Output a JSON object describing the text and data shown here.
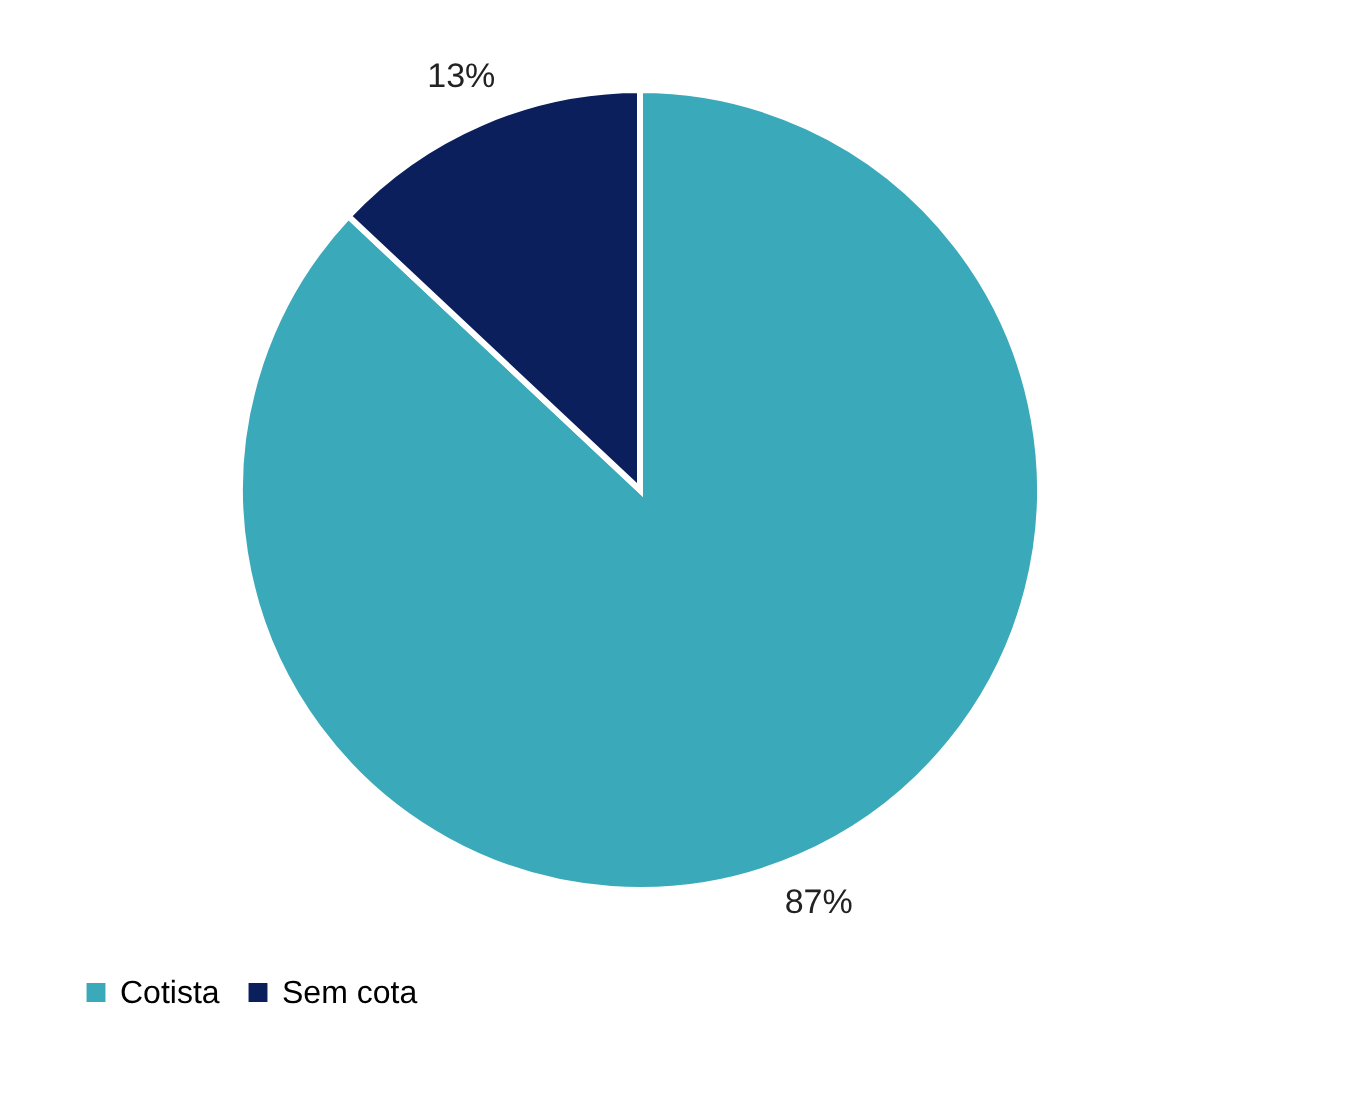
{
  "chart_data": {
    "type": "pie",
    "categories": [
      "Cotista",
      "Sem cota"
    ],
    "values": [
      87,
      13
    ],
    "colors": [
      "#3aa9b9",
      "#0b1f5c"
    ],
    "value_labels": [
      "87%",
      "13%"
    ],
    "legend": "bottom"
  }
}
